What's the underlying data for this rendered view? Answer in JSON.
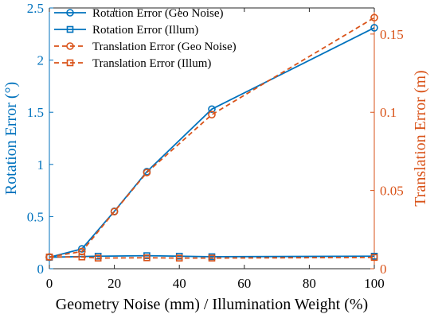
{
  "colors": {
    "left_axis": "#0072BD",
    "right_axis": "#D95319",
    "frame": "#262626",
    "text": "#000000"
  },
  "chart_data": {
    "type": "line",
    "xlabel": "Geometry Noise (mm) / Illumination Weight (%)",
    "ylabel_left": "Rotation Error (°)",
    "ylabel_right": "Translation Error (m)",
    "xlim": [
      0,
      100
    ],
    "ylim_left": [
      0,
      2.5
    ],
    "ylim_right": [
      0,
      0.1667
    ],
    "x_ticks": [
      0,
      20,
      40,
      60,
      80,
      100
    ],
    "y_ticks_left": [
      "0",
      "0.5",
      "1",
      "1.5",
      "2",
      "2.5"
    ],
    "y_tick_values_left": [
      0,
      0.5,
      1,
      1.5,
      2,
      2.5
    ],
    "y_ticks_right": [
      "0",
      "0.05",
      "0.1",
      "0.15"
    ],
    "y_tick_values_right": [
      0,
      0.05,
      0.1,
      0.15
    ],
    "grid": false,
    "legend_position": "top-left",
    "series": [
      {
        "name": "Rotation Error (Geo Noise)",
        "axis": "left",
        "color": "#0072BD",
        "line_style": "solid",
        "marker": "circle",
        "x": [
          0,
          10,
          20,
          30,
          50,
          100
        ],
        "y": [
          0.11,
          0.19,
          0.55,
          0.93,
          1.53,
          2.31
        ]
      },
      {
        "name": "Rotation Error (Illum)",
        "axis": "left",
        "color": "#0072BD",
        "line_style": "solid",
        "marker": "square",
        "x": [
          0,
          15,
          30,
          40,
          50,
          100
        ],
        "y": [
          0.11,
          0.12,
          0.125,
          0.12,
          0.115,
          0.12
        ]
      },
      {
        "name": "Translation Error (Geo Noise)",
        "axis": "right",
        "color": "#D95319",
        "line_style": "dashed",
        "marker": "circle",
        "x": [
          0,
          10,
          20,
          30,
          50,
          100
        ],
        "y": [
          0.0075,
          0.011,
          0.0365,
          0.0615,
          0.0985,
          0.1605
        ]
      },
      {
        "name": "Translation Error (Illum)",
        "axis": "right",
        "color": "#D95319",
        "line_style": "dashed",
        "marker": "square",
        "x": [
          0,
          10,
          15,
          30,
          40,
          50,
          100
        ],
        "y": [
          0.0075,
          0.0075,
          0.0068,
          0.007,
          0.0068,
          0.0068,
          0.0072
        ]
      }
    ]
  }
}
